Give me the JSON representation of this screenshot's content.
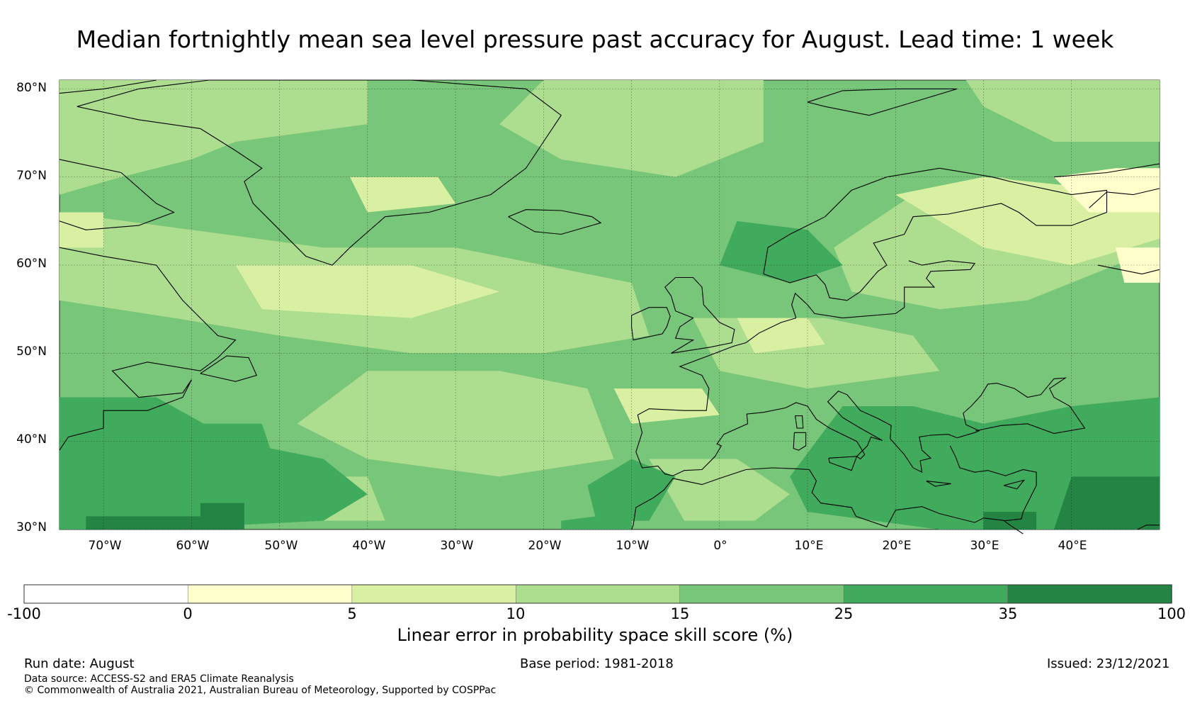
{
  "title": "Median fortnightly mean sea level pressure past accuracy for August. Lead time: 1 week",
  "map": {
    "lat_labels": [
      "80°N",
      "70°N",
      "60°N",
      "50°N",
      "40°N",
      "30°N"
    ],
    "lon_labels": [
      "70°W",
      "60°W",
      "50°W",
      "40°W",
      "30°W",
      "20°W",
      "10°W",
      "0°",
      "10°E",
      "20°E",
      "30°E",
      "40°E"
    ],
    "extent": {
      "lon_min": -75,
      "lon_max": 50,
      "lat_min": 30,
      "lat_max": 81
    }
  },
  "colorbar": {
    "title": "Linear error in probability space skill score (%)",
    "ticks": [
      "-100",
      "0",
      "5",
      "10",
      "15",
      "25",
      "35",
      "100"
    ],
    "colors": [
      "#ffffff",
      "#ffffcc",
      "#d9f0a3",
      "#addd8e",
      "#78c679",
      "#41ab5d",
      "#238443"
    ]
  },
  "footer": {
    "run_date": "Run date: August",
    "base_period": "Base period: 1981-2018",
    "issued": "Issued: 23/12/2021",
    "data_source": "Data source: ACCESS-S2 and ERA5 Climate Reanalysis",
    "copyright": "© Commonwealth of Australia 2021, Australian Bureau of Meteorology, Supported by COSPPac"
  }
}
